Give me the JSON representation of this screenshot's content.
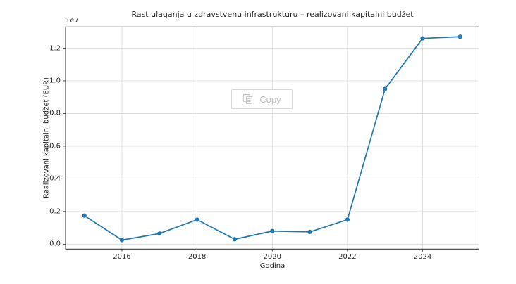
{
  "chart_data": {
    "type": "line",
    "title": "Rast ulaganja u zdravstvenu infrastrukturu – realizovani kapitalni budžet",
    "xlabel": "Godina",
    "ylabel": "Realizovani kapitalni budžet (EUR)",
    "x": [
      2015,
      2016,
      2017,
      2018,
      2019,
      2020,
      2021,
      2022,
      2023,
      2024,
      2025
    ],
    "values": [
      1750000,
      250000,
      650000,
      1500000,
      300000,
      800000,
      750000,
      1500000,
      9500000,
      12600000,
      12700000
    ],
    "xlim": [
      2014.5,
      2025.5
    ],
    "ylim": [
      -300000,
      13300000
    ],
    "x_ticks": [
      2016,
      2018,
      2020,
      2022,
      2024
    ],
    "x_tick_labels": [
      "2016",
      "2018",
      "2020",
      "2022",
      "2024"
    ],
    "y_ticks": [
      0,
      2000000,
      4000000,
      6000000,
      8000000,
      10000000,
      12000000
    ],
    "y_tick_labels": [
      "0.0",
      "0.2",
      "0.4",
      "0.6",
      "0.8",
      "1.0",
      "1.2"
    ],
    "y_offset_label": "1e7",
    "grid": true,
    "legend": "none",
    "marker": "o"
  },
  "overlay": {
    "copy_button_label": "Copy"
  },
  "colors": {
    "line": "#1f77b4",
    "grid": "#d9d9d9",
    "spine": "#2b2b2b",
    "tick": "#262626",
    "text": "#262626",
    "copy_border": "#d9d9d9",
    "copy_text": "#bfbfbf",
    "copy_icon": "#c4c4c4",
    "background": "#ffffff"
  }
}
